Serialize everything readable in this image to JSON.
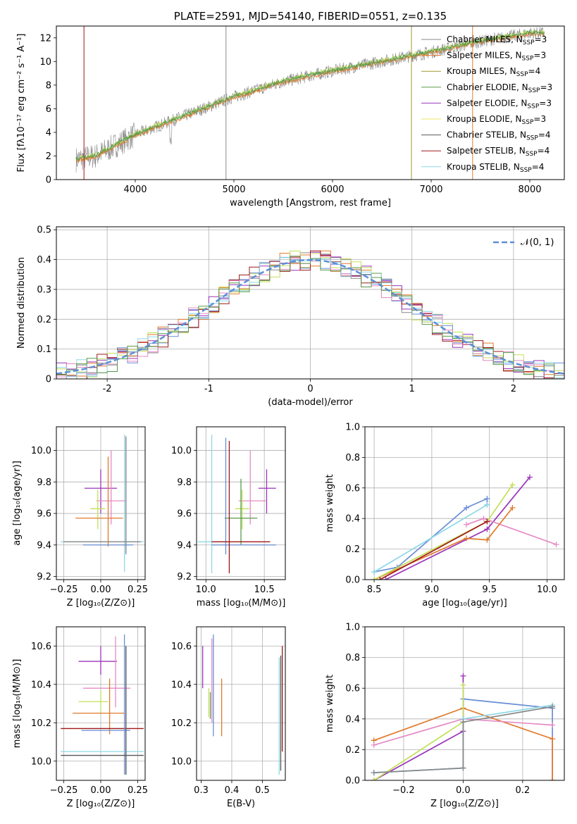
{
  "colors": {
    "blue": "#6a8ed6",
    "orange": "#e07a2b",
    "purple": "#9a35b8",
    "pink": "#e58bc4",
    "lime": "#c4e05a",
    "gray": "#888888",
    "darkgray": "#555555",
    "darkred": "#a01818",
    "cyan": "#8ed8e6",
    "olive": "#a09a30",
    "green": "#5a9a4a",
    "yellow": "#e8e860",
    "normal": "#5b8fd6"
  },
  "chart_data": [
    {
      "id": "spectrum",
      "type": "line",
      "title": "PLATE=2591, MJD=54140, FIBERID=0551, z=0.135",
      "xlabel": "wavelength [Angstrom, rest frame]",
      "ylabel": "Flux [fλ10⁻¹⁷ erg cm⁻² s⁻¹ A⁻¹]",
      "xlim": [
        3200,
        8350
      ],
      "ylim": [
        0,
        13
      ],
      "xticks": [
        4000,
        5000,
        6000,
        7000,
        8000
      ],
      "yticks": [
        0,
        2,
        4,
        6,
        8,
        10,
        12
      ],
      "grid": false,
      "legend": "top-right",
      "data_anchors": {
        "x": [
          3400,
          3600,
          4000,
          4500,
          5000,
          5500,
          6000,
          6500,
          7000,
          7500,
          8000
        ],
        "y": [
          1.7,
          2.0,
          3.8,
          5.4,
          7.0,
          8.3,
          9.2,
          10.0,
          10.8,
          11.7,
          12.4
        ]
      },
      "legend_entries": [
        {
          "label": "Chabrier MILES, N",
          "sub": "SSP",
          "tail": "=3",
          "color_key": "gray"
        },
        {
          "label": "Salpeter MILES, N",
          "sub": "SSP",
          "tail": "=3",
          "color_key": "orange"
        },
        {
          "label": "Kroupa MILES, N",
          "sub": "SSP",
          "tail": "=4",
          "color_key": "olive"
        },
        {
          "label": "Chabrier ELODIE, N",
          "sub": "SSP",
          "tail": "=3",
          "color_key": "green"
        },
        {
          "label": "Salpeter ELODIE, N",
          "sub": "SSP",
          "tail": "=3",
          "color_key": "purple"
        },
        {
          "label": "Kroupa ELODIE, N",
          "sub": "SSP",
          "tail": "=3",
          "color_key": "yellow"
        },
        {
          "label": "Chabrier STELIB, N",
          "sub": "SSP",
          "tail": "=4",
          "color_key": "darkgray"
        },
        {
          "label": "Salpeter STELIB, N",
          "sub": "SSP",
          "tail": "=4",
          "color_key": "darkred"
        },
        {
          "label": "Kroupa STELIB, N",
          "sub": "SSP",
          "tail": "=4",
          "color_key": "cyan"
        }
      ]
    },
    {
      "id": "residuals",
      "type": "line",
      "xlabel": "(data-model)/error",
      "ylabel": "Normed distribution",
      "xlim": [
        -2.5,
        2.5
      ],
      "ylim": [
        0,
        0.51
      ],
      "xticks": [
        -2,
        -1,
        0,
        1,
        2
      ],
      "yticks": [
        0.0,
        0.1,
        0.2,
        0.3,
        0.4,
        0.5
      ],
      "grid": true,
      "legend": "top-right",
      "legend_label": "𝒩(0, 1)",
      "normal_curve": {
        "mean": 0,
        "sigma": 1
      },
      "hist_bin_width": 0.1
    },
    {
      "id": "age_vs_Z",
      "type": "scatter",
      "xlabel": "Z [log₁₀(Z/Z⊙)]",
      "ylabel": "age  [log₁₀(age/yr)]",
      "xlim": [
        -0.3,
        0.3
      ],
      "ylim": [
        9.18,
        10.15
      ],
      "xticks": [
        -0.25,
        0.0,
        0.25
      ],
      "xticklabels": [
        "−0.25",
        "0.00",
        "0.25"
      ],
      "yticks": [
        9.2,
        9.4,
        9.6,
        9.8,
        10.0
      ],
      "yticklabels": [
        "9.2",
        "9.4",
        "9.6",
        "9.8",
        "10.0"
      ],
      "grid": true,
      "points": [
        {
          "x": 0.0,
          "xe": [
            -0.11,
            0.11
          ],
          "y": 9.76,
          "ye": [
            9.6,
            9.88
          ],
          "color_key": "purple"
        },
        {
          "x": 0.07,
          "xe": [
            -0.03,
            0.17
          ],
          "y": 9.68,
          "ye": [
            9.53,
            10.0
          ],
          "color_key": "pink"
        },
        {
          "x": -0.02,
          "xe": [
            -0.07,
            0.03
          ],
          "y": 9.63,
          "ye": [
            9.5,
            9.75
          ],
          "color_key": "lime"
        },
        {
          "x": 0.05,
          "xe": [
            -0.17,
            0.15
          ],
          "y": 9.57,
          "ye": [
            9.39,
            9.96
          ],
          "color_key": "orange"
        },
        {
          "x": 0.16,
          "xe": [
            -0.27,
            0.29
          ],
          "y": 9.42,
          "ye": [
            9.23,
            10.1
          ],
          "color_key": "cyan"
        },
        {
          "x": 0.17,
          "xe": [
            -0.12,
            0.22
          ],
          "y": 9.4,
          "ye": [
            9.34,
            10.08
          ],
          "color_key": "blue"
        },
        {
          "x": 0.17,
          "xe": [
            -0.25,
            0.27
          ],
          "y": 9.42,
          "ye": [
            9.35,
            10.09
          ],
          "color_key": "gray"
        }
      ]
    },
    {
      "id": "age_vs_mass",
      "type": "scatter",
      "xlabel": "mass [log₁₀(M/M⊙)]",
      "ylabel": "",
      "xlim": [
        9.92,
        10.68
      ],
      "ylim": [
        9.18,
        10.15
      ],
      "xticks": [
        10.0,
        10.5
      ],
      "xticklabels": [
        "10.0",
        "10.5"
      ],
      "yticks": [
        9.2,
        9.4,
        9.6,
        9.8,
        10.0
      ],
      "yticklabels": [
        "9.2",
        "9.4",
        "9.6",
        "9.8",
        "10.0"
      ],
      "grid": true,
      "points": [
        {
          "x": 10.52,
          "xe": [
            10.45,
            10.6
          ],
          "y": 9.76,
          "ye": [
            9.6,
            9.88
          ],
          "color_key": "purple"
        },
        {
          "x": 10.38,
          "xe": [
            10.28,
            10.52
          ],
          "y": 9.68,
          "ye": [
            9.53,
            10.0
          ],
          "color_key": "pink"
        },
        {
          "x": 10.31,
          "xe": [
            10.25,
            10.37
          ],
          "y": 9.63,
          "ye": [
            9.5,
            9.75
          ],
          "color_key": "lime"
        },
        {
          "x": 10.3,
          "xe": [
            10.16,
            10.44
          ],
          "y": 9.57,
          "ye": [
            9.4,
            9.82
          ],
          "color_key": "green"
        },
        {
          "x": 10.05,
          "xe": [
            9.93,
            10.18
          ],
          "y": 9.42,
          "ye": [
            9.22,
            10.1
          ],
          "color_key": "cyan"
        },
        {
          "x": 10.17,
          "xe": [
            10.05,
            10.6
          ],
          "y": 9.4,
          "ye": [
            9.34,
            10.08
          ],
          "color_key": "blue"
        },
        {
          "x": 10.2,
          "xe": [
            10.05,
            10.55
          ],
          "y": 9.42,
          "ye": [
            9.22,
            10.06
          ],
          "color_key": "darkred"
        }
      ]
    },
    {
      "id": "weight_vs_age",
      "type": "line",
      "xlabel": "age  [log₁₀(age/yr)]",
      "ylabel": "mass weight",
      "xlim": [
        8.42,
        10.15
      ],
      "ylim": [
        0,
        1.0
      ],
      "xticks": [
        8.5,
        9.0,
        9.5,
        10.0
      ],
      "xticklabels": [
        "8.5",
        "9.0",
        "9.5",
        "10.0"
      ],
      "yticks": [
        0.0,
        0.2,
        0.4,
        0.6,
        0.8,
        1.0
      ],
      "yticklabels": [
        "0.0",
        "0.2",
        "0.4",
        "0.6",
        "0.8",
        "1.0"
      ],
      "grid": true,
      "series": [
        {
          "color_key": "blue",
          "x": [
            8.5,
            8.7,
            9.3,
            9.48,
            9.48
          ],
          "y": [
            0.05,
            0.08,
            0.47,
            0.53,
            0.49
          ]
        },
        {
          "color_key": "purple",
          "x": [
            8.6,
            9.48,
            9.85
          ],
          "y": [
            0.0,
            0.33,
            0.67
          ]
        },
        {
          "color_key": "pink",
          "x": [
            9.3,
            9.45,
            10.08
          ],
          "y": [
            0.36,
            0.4,
            0.23
          ]
        },
        {
          "color_key": "orange",
          "x": [
            8.5,
            9.3,
            9.48,
            9.7
          ],
          "y": [
            0.0,
            0.27,
            0.26,
            0.47
          ]
        },
        {
          "color_key": "lime",
          "x": [
            8.5,
            9.48,
            9.7
          ],
          "y": [
            0.0,
            0.38,
            0.62
          ]
        },
        {
          "color_key": "cyan",
          "x": [
            8.5,
            9.48
          ],
          "y": [
            0.05,
            0.49
          ]
        },
        {
          "color_key": "darkred",
          "x": [
            8.55,
            9.48
          ],
          "y": [
            0.0,
            0.38
          ]
        }
      ]
    },
    {
      "id": "mass_vs_Z",
      "type": "scatter",
      "xlabel": "Z [log₁₀(Z/Z⊙)]",
      "ylabel": "mass [log₁₀(M/M⊙)]",
      "xlim": [
        -0.3,
        0.3
      ],
      "ylim": [
        9.9,
        10.7
      ],
      "xticks": [
        -0.25,
        0.0,
        0.25
      ],
      "xticklabels": [
        "−0.25",
        "0.00",
        "0.25"
      ],
      "yticks": [
        10.0,
        10.2,
        10.4,
        10.6
      ],
      "yticklabels": [
        "10.0",
        "10.2",
        "10.4",
        "10.6"
      ],
      "grid": true,
      "points": [
        {
          "x": 0.0,
          "xe": [
            -0.15,
            0.11
          ],
          "y": 10.52,
          "ye": [
            10.45,
            10.6
          ],
          "color_key": "purple"
        },
        {
          "x": 0.1,
          "xe": [
            -0.12,
            0.2
          ],
          "y": 10.38,
          "ye": [
            10.28,
            10.65
          ],
          "color_key": "pink"
        },
        {
          "x": 0.0,
          "xe": [
            -0.15,
            0.05
          ],
          "y": 10.31,
          "ye": [
            10.25,
            10.37
          ],
          "color_key": "lime"
        },
        {
          "x": 0.06,
          "xe": [
            -0.19,
            0.16
          ],
          "y": 10.25,
          "ye": [
            10.14,
            10.43
          ],
          "color_key": "orange"
        },
        {
          "x": 0.17,
          "xe": [
            -0.27,
            0.29
          ],
          "y": 10.17,
          "ye": [
            9.93,
            10.6
          ],
          "color_key": "darkred"
        },
        {
          "x": 0.16,
          "xe": [
            -0.13,
            0.2
          ],
          "y": 10.16,
          "ye": [
            9.93,
            10.66
          ],
          "color_key": "blue"
        },
        {
          "x": 0.17,
          "xe": [
            -0.27,
            0.29
          ],
          "y": 10.05,
          "ye": [
            9.93,
            10.6
          ],
          "color_key": "cyan"
        },
        {
          "x": 0.17,
          "xe": [
            -0.27,
            0.29
          ],
          "y": 10.03,
          "ye": [
            9.93,
            10.6
          ],
          "color_key": "darkgray"
        }
      ]
    },
    {
      "id": "mass_vs_EBV",
      "type": "scatter",
      "xlabel": "E(B-V)",
      "ylabel": "",
      "xlim": [
        0.285,
        0.575
      ],
      "ylim": [
        9.9,
        10.7
      ],
      "xticks": [
        0.3,
        0.4,
        0.5
      ],
      "xticklabels": [
        "0.3",
        "0.4",
        "0.5"
      ],
      "yticks": [
        10.0,
        10.2,
        10.4,
        10.6
      ],
      "yticklabels": [
        "10.0",
        "10.2",
        "10.4",
        "10.6"
      ],
      "grid": true,
      "points": [
        {
          "x": 0.305,
          "ye": [
            10.38,
            10.6
          ],
          "color_key": "purple"
        },
        {
          "x": 0.325,
          "ye": [
            10.23,
            10.38
          ],
          "color_key": "lime"
        },
        {
          "x": 0.33,
          "ye": [
            10.22,
            10.36
          ],
          "color_key": "green"
        },
        {
          "x": 0.335,
          "ye": [
            10.2,
            10.64
          ],
          "color_key": "pink"
        },
        {
          "x": 0.34,
          "ye": [
            10.13,
            10.66
          ],
          "color_key": "blue"
        },
        {
          "x": 0.367,
          "ye": [
            10.13,
            10.43
          ],
          "color_key": "orange"
        },
        {
          "x": 0.555,
          "ye": [
            9.93,
            10.54
          ],
          "color_key": "cyan"
        },
        {
          "x": 0.56,
          "ye": [
            9.95,
            10.55
          ],
          "color_key": "darkgray"
        },
        {
          "x": 0.565,
          "ye": [
            10.05,
            10.6
          ],
          "color_key": "darkred"
        }
      ]
    },
    {
      "id": "weight_vs_Z",
      "type": "line",
      "xlabel": "Z [log₁₀(Z/Z⊙)]",
      "ylabel": "mass weight",
      "xlim": [
        -0.33,
        0.34
      ],
      "ylim": [
        0,
        1.0
      ],
      "xticks": [
        -0.2,
        0.0,
        0.2
      ],
      "xticklabels": [
        "−0.2",
        "0.0",
        "0.2"
      ],
      "yticks": [
        0.0,
        0.2,
        0.4,
        0.6,
        0.8,
        1.0
      ],
      "yticklabels": [
        "0.0",
        "0.2",
        "0.4",
        "0.6",
        "0.8",
        "1.0"
      ],
      "grid": true,
      "series": [
        {
          "color_key": "blue",
          "x": [
            -0.3,
            0.0,
            0.0,
            0.0,
            0.3,
            0.3
          ],
          "y": [
            0.05,
            0.08,
            0.38,
            0.53,
            0.47,
            0.0
          ]
        },
        {
          "color_key": "orange",
          "x": [
            -0.3,
            0.0,
            0.3,
            0.3
          ],
          "y": [
            0.26,
            0.47,
            0.27,
            0.0
          ]
        },
        {
          "color_key": "pink",
          "x": [
            -0.3,
            0.0,
            0.3
          ],
          "y": [
            0.23,
            0.4,
            0.36
          ]
        },
        {
          "color_key": "purple",
          "x": [
            -0.3,
            0.0,
            0.0
          ],
          "y": [
            0.0,
            0.32,
            0.68
          ]
        },
        {
          "color_key": "lime",
          "x": [
            -0.3,
            0.0,
            0.0
          ],
          "y": [
            0.0,
            0.38,
            0.62
          ]
        },
        {
          "color_key": "cyan",
          "x": [
            -0.3,
            0.0,
            0.0,
            0.3
          ],
          "y": [
            0.05,
            0.08,
            0.4,
            0.49
          ]
        },
        {
          "color_key": "gray",
          "x": [
            -0.3,
            0.0,
            0.0,
            0.3
          ],
          "y": [
            0.05,
            0.08,
            0.38,
            0.48
          ]
        }
      ]
    }
  ]
}
